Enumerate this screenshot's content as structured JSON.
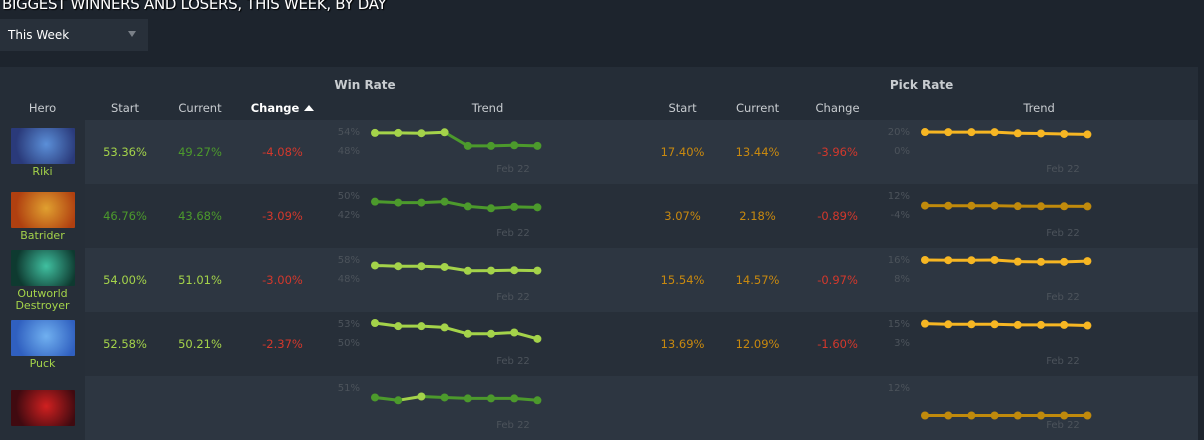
{
  "title": "BIGGEST WINNERS AND LOSERS, THIS WEEK, BY DAY",
  "filter": {
    "selected": "This Week"
  },
  "table": {
    "groups": {
      "win_rate": "Win Rate",
      "pick_rate": "Pick Rate"
    },
    "columns": {
      "hero": "Hero",
      "start": "Start",
      "current": "Current",
      "change": "Change",
      "trend": "Trend"
    },
    "sorted_column": "win_rate.change",
    "sort_direction": "ascending",
    "date_label": "Feb 22",
    "colors": {
      "win_high": "#a4d34a",
      "win_low": "#4c9a2c",
      "pick_high": "#f6b623",
      "pick_low": "#c08a0c",
      "pick_text": "#c8890f",
      "negative": "#d3382c"
    },
    "rows": [
      {
        "hero": "Riki",
        "image_colors": [
          "#2a3a7a",
          "#5b8fd8"
        ],
        "win": {
          "start": "53.36%",
          "current": "49.27%",
          "change": "-4.08%",
          "axis": [
            "54%",
            "48%"
          ],
          "trend": [
            53.4,
            53.4,
            53.3,
            53.6,
            49.3,
            49.3,
            49.5,
            49.3
          ]
        },
        "pick": {
          "start": "17.40%",
          "current": "13.44%",
          "change": "-3.96%",
          "axis": [
            "20%",
            "0%"
          ],
          "trend": [
            18.9,
            18.8,
            18.8,
            18.8,
            17.6,
            17.4,
            16.9,
            16.4
          ]
        }
      },
      {
        "hero": "Batrider",
        "image_colors": [
          "#b04010",
          "#e0a030"
        ],
        "win": {
          "start": "46.76%",
          "current": "43.68%",
          "change": "-3.09%",
          "axis": [
            "50%",
            "42%"
          ],
          "trend": [
            47.2,
            46.8,
            46.8,
            47.2,
            45.2,
            44.4,
            45.0,
            44.8
          ]
        },
        "pick": {
          "start": "3.07%",
          "current": "2.18%",
          "change": "-0.89%",
          "axis": [
            "12%",
            "-4%"
          ],
          "trend": [
            3.1,
            3.0,
            3.0,
            3.0,
            2.6,
            2.5,
            2.5,
            2.4
          ]
        },
        "pick_low": true
      },
      {
        "hero": "Outworld Destroyer",
        "image_colors": [
          "#0e3a30",
          "#40c0a0"
        ],
        "win": {
          "start": "54.00%",
          "current": "51.01%",
          "change": "-3.00%",
          "axis": [
            "58%",
            "48%"
          ],
          "trend": [
            54.6,
            54.2,
            54.2,
            53.8,
            51.8,
            51.9,
            52.1,
            51.9
          ]
        },
        "pick": {
          "start": "15.54%",
          "current": "14.57%",
          "change": "-0.97%",
          "axis": [
            "16%",
            "8%"
          ],
          "trend": [
            15.6,
            15.5,
            15.5,
            15.6,
            14.9,
            14.8,
            14.8,
            15.1
          ]
        }
      },
      {
        "hero": "Puck",
        "image_colors": [
          "#3060c0",
          "#70b0f0"
        ],
        "win": {
          "start": "52.58%",
          "current": "50.21%",
          "change": "-2.37%",
          "axis": [
            "53%",
            "50%"
          ],
          "trend": [
            53.0,
            52.5,
            52.5,
            52.3,
            51.3,
            51.3,
            51.5,
            50.5
          ]
        },
        "pick": {
          "start": "13.69%",
          "current": "12.09%",
          "change": "-1.60%",
          "axis": [
            "15%",
            "3%"
          ],
          "trend": [
            14.6,
            14.2,
            14.2,
            14.2,
            13.8,
            13.8,
            13.8,
            13.4
          ]
        }
      },
      {
        "hero": "",
        "image_colors": [
          "#400a10",
          "#d02020"
        ],
        "win": {
          "start": "",
          "current": "",
          "change": "",
          "axis": [
            "51%"
          ],
          "trend": [
            49.9,
            49.6,
            50.0,
            49.9,
            49.8,
            49.8,
            49.8,
            49.6
          ]
        },
        "pick": {
          "start": "",
          "current": "",
          "change": "",
          "axis": [
            "12%"
          ],
          "trend": [
            9.0,
            9.0,
            9.0,
            9.0,
            9.0,
            9.0,
            9.0,
            9.0
          ]
        },
        "pick_low": true
      }
    ]
  }
}
